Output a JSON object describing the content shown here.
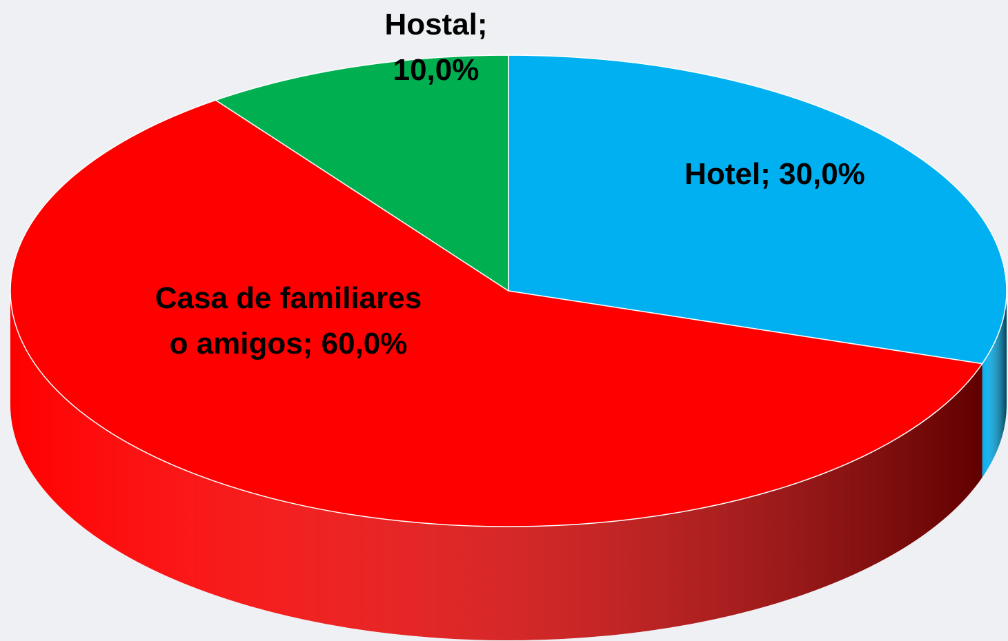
{
  "chart_data": {
    "type": "pie3d",
    "categories": [
      "Hotel",
      "Casa de familiares o amigos",
      "Hostal"
    ],
    "values": [
      30,
      60,
      10
    ],
    "value_labels": [
      "Hotel; 30,0%",
      "Casa de familiares o amigos; 60,0%",
      "Hostal; 10,0%"
    ],
    "colors": [
      "#00b0f0",
      "#ff0000",
      "#00b050"
    ]
  }
}
